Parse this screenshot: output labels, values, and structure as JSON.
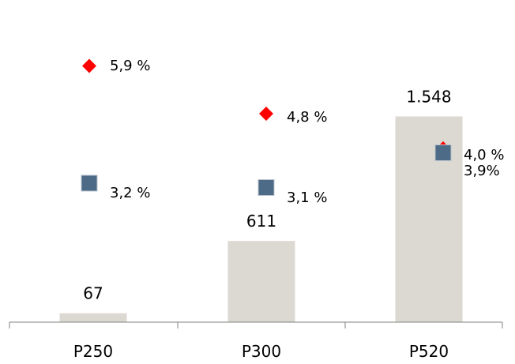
{
  "chart_data": {
    "type": "bar",
    "categories": [
      "P250",
      "P300",
      "P520"
    ],
    "series": [
      {
        "kind": "bar",
        "values": [
          67,
          611,
          1548
        ],
        "labels": [
          "67",
          "611",
          "1.548"
        ],
        "color": "#dcd9d2"
      },
      {
        "kind": "marker",
        "marker": "diamond",
        "values": [
          5.9,
          4.8,
          4.0
        ],
        "labels": [
          "5,9 %",
          "4,8 %",
          "4,0 %"
        ],
        "color": "#ff0000"
      },
      {
        "kind": "marker",
        "marker": "square",
        "values": [
          3.2,
          3.1,
          3.9
        ],
        "labels": [
          "3,2 %",
          "3,1 %",
          "3,9%"
        ],
        "color": "#4d6a86"
      }
    ],
    "bar_ylim": [
      0,
      1700
    ],
    "marker_ylim": [
      0,
      7
    ],
    "legend": "none",
    "grid": false
  }
}
